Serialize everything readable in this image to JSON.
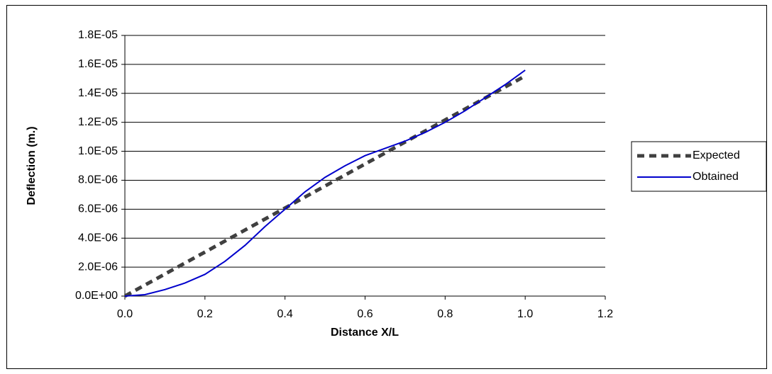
{
  "chart_data": {
    "type": "line",
    "x_label": "Distance X/L",
    "y_label": "Deflection (m.)",
    "xlim": [
      0,
      1.2
    ],
    "xticks": [
      {
        "value": 0,
        "label": "0.0"
      },
      0.2,
      0.4,
      0.6,
      0.8,
      {
        "value": 1,
        "label": "1.0"
      },
      1.2
    ],
    "ylim": [
      0,
      1.8e-05
    ],
    "yticks": [
      {
        "value": 0,
        "label": "0.0E+00"
      },
      {
        "value": 2e-06,
        "label": "2.0E-06"
      },
      {
        "value": 4e-06,
        "label": "4.0E-06"
      },
      {
        "value": 6e-06,
        "label": "6.0E-06"
      },
      {
        "value": 8e-06,
        "label": "8.0E-06"
      },
      {
        "value": 1e-05,
        "label": "1.0E-05"
      },
      {
        "value": 1.2e-05,
        "label": "1.2E-05"
      },
      {
        "value": 1.4e-05,
        "label": "1.4E-05"
      },
      {
        "value": 1.6e-05,
        "label": "1.6E-05"
      },
      {
        "value": 1.8e-05,
        "label": "1.8E-05"
      }
    ],
    "grid": true,
    "legend": "right",
    "series": [
      {
        "name": "Expected",
        "color": "#404040",
        "dashed": true,
        "x": [
          0,
          1
        ],
        "values": [
          0,
          1.52e-05
        ]
      },
      {
        "name": "Obtained",
        "color": "#0000cc",
        "dashed": false,
        "x": [
          0,
          0.05,
          0.1,
          0.15,
          0.2,
          0.25,
          0.3,
          0.35,
          0.4,
          0.45,
          0.5,
          0.55,
          0.6,
          0.65,
          0.7,
          0.75,
          0.8,
          0.85,
          0.9,
          0.95,
          1
        ],
        "values": [
          0,
          1e-07,
          4.5e-07,
          9e-07,
          1.5e-06,
          2.4e-06,
          3.5e-06,
          4.8e-06,
          6e-06,
          7.2e-06,
          8.2e-06,
          9e-06,
          9.7e-06,
          1.02e-05,
          1.07e-05,
          1.13e-05,
          1.2e-05,
          1.28e-05,
          1.37e-05,
          1.46e-05,
          1.56e-05
        ]
      }
    ]
  }
}
